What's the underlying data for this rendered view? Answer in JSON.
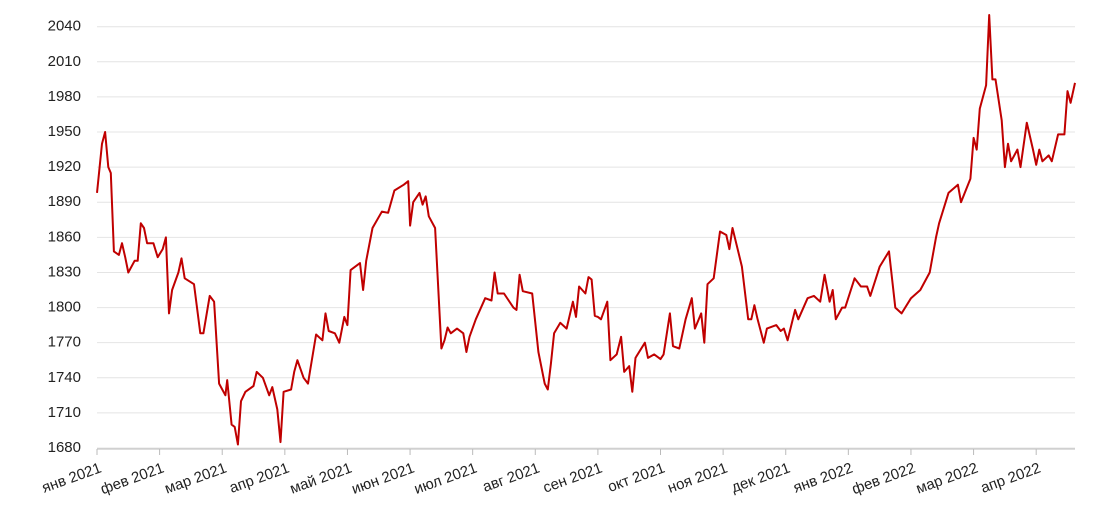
{
  "chart_data": {
    "type": "line",
    "color": "#c00000",
    "grid": true,
    "xlim": [
      0,
      15.62
    ],
    "xticks": [
      {
        "value": 0,
        "label": "янв 2021"
      },
      {
        "value": 1,
        "label": "фев 2021"
      },
      {
        "value": 2,
        "label": "мар 2021"
      },
      {
        "value": 3,
        "label": "апр 2021"
      },
      {
        "value": 4,
        "label": "май 2021"
      },
      {
        "value": 5,
        "label": "июн 2021"
      },
      {
        "value": 6,
        "label": "июл 2021"
      },
      {
        "value": 7,
        "label": "авг 2021"
      },
      {
        "value": 8,
        "label": "сен 2021"
      },
      {
        "value": 9,
        "label": "окт 2021"
      },
      {
        "value": 10,
        "label": "ноя 2021"
      },
      {
        "value": 11,
        "label": "дек 2021"
      },
      {
        "value": 12,
        "label": "янв 2022"
      },
      {
        "value": 13,
        "label": "фев 2022"
      },
      {
        "value": 14,
        "label": "мар 2022"
      },
      {
        "value": 15,
        "label": "апр 2022"
      }
    ],
    "ylim": [
      1680,
      2050
    ],
    "yticks": [
      1680,
      1710,
      1740,
      1770,
      1800,
      1830,
      1860,
      1890,
      1920,
      1950,
      1980,
      2010,
      2040
    ],
    "x": [
      0,
      0.08,
      0.13,
      0.18,
      0.22,
      0.27,
      0.35,
      0.4,
      0.45,
      0.5,
      0.6,
      0.65,
      0.7,
      0.75,
      0.8,
      0.9,
      0.97,
      1.05,
      1.1,
      1.12,
      1.15,
      1.2,
      1.3,
      1.35,
      1.4,
      1.55,
      1.65,
      1.7,
      1.8,
      1.87,
      1.95,
      2.05,
      2.08,
      2.15,
      2.2,
      2.25,
      2.3,
      2.37,
      2.5,
      2.55,
      2.65,
      2.75,
      2.8,
      2.88,
      2.93,
      2.98,
      3.1,
      3.15,
      3.2,
      3.3,
      3.37,
      3.4,
      3.5,
      3.6,
      3.65,
      3.7,
      3.8,
      3.87,
      3.95,
      4.0,
      4.05,
      4.2,
      4.25,
      4.3,
      4.4,
      4.55,
      4.65,
      4.75,
      4.9,
      4.97,
      5.0,
      5.05,
      5.15,
      5.2,
      5.25,
      5.3,
      5.4,
      5.5,
      5.55,
      5.6,
      5.65,
      5.75,
      5.85,
      5.9,
      5.95,
      6.05,
      6.2,
      6.3,
      6.35,
      6.4,
      6.5,
      6.65,
      6.7,
      6.75,
      6.8,
      6.95,
      7.05,
      7.15,
      7.2,
      7.25,
      7.3,
      7.4,
      7.5,
      7.6,
      7.65,
      7.7,
      7.8,
      7.85,
      7.9,
      7.95,
      8.0,
      8.05,
      8.15,
      8.2,
      8.3,
      8.37,
      8.42,
      8.5,
      8.55,
      8.6,
      8.75,
      8.8,
      8.9,
      9.0,
      9.05,
      9.15,
      9.2,
      9.3,
      9.4,
      9.5,
      9.55,
      9.65,
      9.7,
      9.75,
      9.85,
      9.95,
      10.05,
      10.1,
      10.15,
      10.3,
      10.4,
      10.45,
      10.5,
      10.55,
      10.65,
      10.7,
      10.85,
      10.92,
      10.97,
      11.03,
      11.15,
      11.2,
      11.35,
      11.45,
      11.55,
      11.62,
      11.7,
      11.75,
      11.8,
      11.9,
      11.95,
      12.1,
      12.2,
      12.3,
      12.35,
      12.5,
      12.65,
      12.75,
      12.85,
      13.0,
      13.15,
      13.3,
      13.4,
      13.45,
      13.6,
      13.75,
      13.8,
      13.95,
      14.0,
      14.05,
      14.1,
      14.2,
      14.25,
      14.3,
      14.35,
      14.45,
      14.5,
      14.55,
      14.6,
      14.7,
      14.75,
      14.85,
      14.95,
      15.0,
      15.05,
      15.1,
      15.2,
      15.25,
      15.35,
      15.45,
      15.5,
      15.55,
      15.62
    ],
    "values": [
      1898,
      1940,
      1950,
      1920,
      1915,
      1848,
      1845,
      1855,
      1843,
      1830,
      1840,
      1840,
      1872,
      1868,
      1855,
      1855,
      1843,
      1850,
      1860,
      1835,
      1795,
      1815,
      1830,
      1842,
      1825,
      1820,
      1778,
      1778,
      1810,
      1805,
      1735,
      1725,
      1738,
      1700,
      1698,
      1683,
      1720,
      1728,
      1733,
      1745,
      1740,
      1725,
      1732,
      1713,
      1685,
      1728,
      1730,
      1745,
      1755,
      1740,
      1735,
      1745,
      1777,
      1772,
      1795,
      1780,
      1778,
      1770,
      1792,
      1785,
      1832,
      1838,
      1815,
      1840,
      1868,
      1882,
      1881,
      1900,
      1905,
      1908,
      1870,
      1890,
      1898,
      1888,
      1895,
      1878,
      1868,
      1765,
      1772,
      1783,
      1778,
      1782,
      1778,
      1762,
      1775,
      1790,
      1808,
      1806,
      1830,
      1812,
      1812,
      1800,
      1798,
      1828,
      1814,
      1812,
      1762,
      1735,
      1730,
      1752,
      1778,
      1787,
      1782,
      1805,
      1792,
      1818,
      1812,
      1826,
      1824,
      1793,
      1792,
      1790,
      1805,
      1755,
      1760,
      1775,
      1745,
      1750,
      1728,
      1757,
      1770,
      1757,
      1760,
      1756,
      1760,
      1795,
      1767,
      1765,
      1790,
      1808,
      1782,
      1795,
      1770,
      1820,
      1825,
      1865,
      1862,
      1850,
      1868,
      1835,
      1790,
      1790,
      1802,
      1790,
      1770,
      1782,
      1785,
      1780,
      1782,
      1772,
      1798,
      1790,
      1808,
      1810,
      1805,
      1828,
      1805,
      1815,
      1790,
      1800,
      1800,
      1825,
      1818,
      1818,
      1810,
      1835,
      1848,
      1800,
      1795,
      1808,
      1815,
      1830,
      1860,
      1872,
      1898,
      1905,
      1890,
      1910,
      1945,
      1935,
      1970,
      1990,
      2050,
      1995,
      1995,
      1960,
      1920,
      1940,
      1925,
      1935,
      1920,
      1958,
      1935,
      1922,
      1935,
      1925,
      1930,
      1925,
      1948,
      1948,
      1985,
      1975,
      1992
    ]
  }
}
